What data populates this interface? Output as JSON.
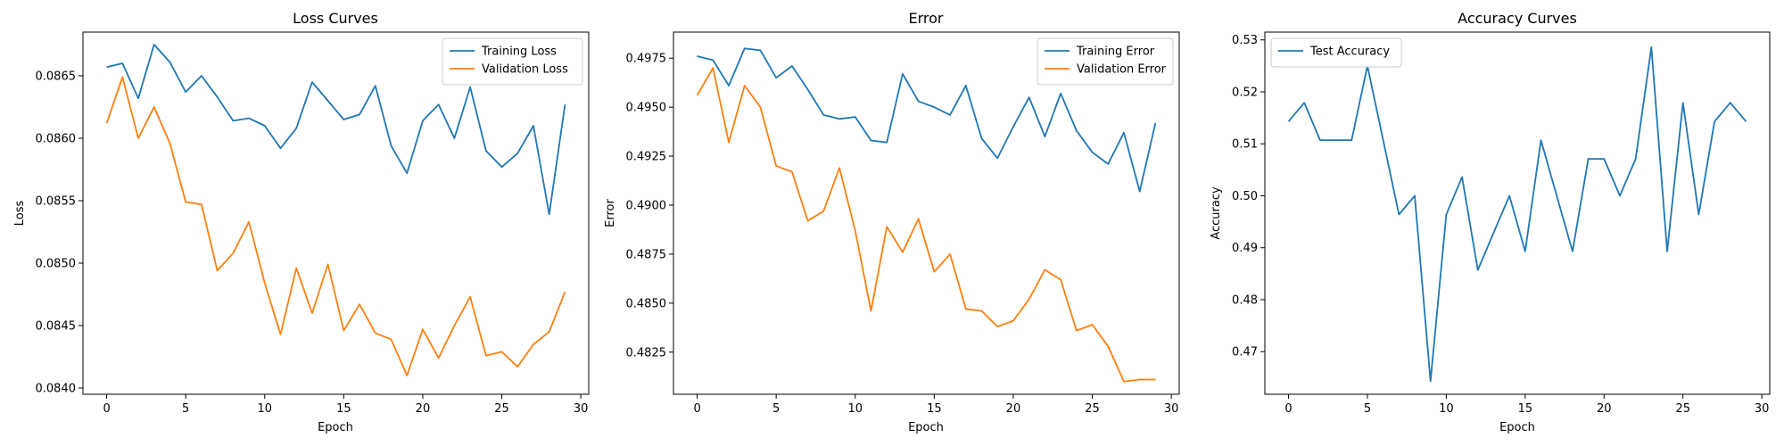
{
  "colors": {
    "series1": "#1f77b4",
    "series2": "#ff7f0e"
  },
  "chart_data": [
    {
      "type": "line",
      "title": "Loss Curves",
      "xlabel": "Epoch",
      "ylabel": "Loss",
      "xlim": [
        -1.5,
        30.5
      ],
      "ylim": [
        0.08395,
        0.08685
      ],
      "xticks": [
        0,
        5,
        10,
        15,
        20,
        25,
        30
      ],
      "yticks": [
        0.084,
        0.0845,
        0.085,
        0.0855,
        0.086,
        0.0865
      ],
      "ytick_decimals": 4,
      "grid": false,
      "legend": "upper right",
      "x": [
        0,
        1,
        2,
        3,
        4,
        5,
        6,
        7,
        8,
        9,
        10,
        11,
        12,
        13,
        14,
        15,
        16,
        17,
        18,
        19,
        20,
        21,
        22,
        23,
        24,
        25,
        26,
        27,
        28,
        29
      ],
      "series": [
        {
          "name": "Training Loss",
          "color": "#1f77b4",
          "values": [
            0.08657,
            0.0866,
            0.08632,
            0.08675,
            0.08661,
            0.08637,
            0.0865,
            0.08633,
            0.08614,
            0.08616,
            0.0861,
            0.08592,
            0.08608,
            0.08645,
            0.0863,
            0.08615,
            0.08619,
            0.08642,
            0.08594,
            0.08572,
            0.08614,
            0.08627,
            0.086,
            0.08641,
            0.0859,
            0.08577,
            0.08588,
            0.0861,
            0.08539,
            0.08627
          ]
        },
        {
          "name": "Validation Loss",
          "color": "#ff7f0e",
          "values": [
            0.08612,
            0.08649,
            0.086,
            0.08625,
            0.08596,
            0.08549,
            0.08547,
            0.08494,
            0.08508,
            0.08533,
            0.08484,
            0.08443,
            0.08496,
            0.0846,
            0.08499,
            0.08446,
            0.08467,
            0.08444,
            0.08439,
            0.0841,
            0.08447,
            0.08424,
            0.0845,
            0.08473,
            0.08426,
            0.08429,
            0.08417,
            0.08435,
            0.08445,
            0.08477
          ]
        }
      ]
    },
    {
      "type": "line",
      "title": "Error",
      "xlabel": "Epoch",
      "ylabel": "Error",
      "xlim": [
        -1.5,
        30.5
      ],
      "ylim": [
        0.48035,
        0.49883
      ],
      "xticks": [
        0,
        5,
        10,
        15,
        20,
        25,
        30
      ],
      "yticks": [
        0.4825,
        0.485,
        0.4875,
        0.49,
        0.4925,
        0.495,
        0.4975
      ],
      "ytick_decimals": 4,
      "grid": false,
      "legend": "upper right",
      "x": [
        0,
        1,
        2,
        3,
        4,
        5,
        6,
        7,
        8,
        9,
        10,
        11,
        12,
        13,
        14,
        15,
        16,
        17,
        18,
        19,
        20,
        21,
        22,
        23,
        24,
        25,
        26,
        27,
        28,
        29
      ],
      "series": [
        {
          "name": "Training Error",
          "color": "#1f77b4",
          "values": [
            0.4976,
            0.4974,
            0.4961,
            0.498,
            0.4979,
            0.4965,
            0.4971,
            0.4959,
            0.4946,
            0.4944,
            0.4945,
            0.4933,
            0.4932,
            0.4967,
            0.4953,
            0.495,
            0.4946,
            0.4961,
            0.4934,
            0.4924,
            0.494,
            0.4955,
            0.4935,
            0.4957,
            0.4938,
            0.4927,
            0.4921,
            0.4937,
            0.4907,
            0.4942
          ]
        },
        {
          "name": "Validation Error",
          "color": "#ff7f0e",
          "values": [
            0.4956,
            0.497,
            0.4932,
            0.4961,
            0.495,
            0.492,
            0.4917,
            0.4892,
            0.4897,
            0.4919,
            0.4887,
            0.4846,
            0.4889,
            0.4876,
            0.4893,
            0.4866,
            0.4875,
            0.4847,
            0.4846,
            0.4838,
            0.4841,
            0.4852,
            0.4867,
            0.4862,
            0.4836,
            0.4839,
            0.4828,
            0.481,
            0.4811,
            0.4811
          ]
        }
      ]
    },
    {
      "type": "line",
      "title": "Accuracy Curves",
      "xlabel": "Epoch",
      "ylabel": "Accuracy",
      "xlim": [
        -1.5,
        30.5
      ],
      "ylim": [
        0.4618,
        0.5315
      ],
      "xticks": [
        0,
        5,
        10,
        15,
        20,
        25,
        30
      ],
      "yticks": [
        0.47,
        0.48,
        0.49,
        0.5,
        0.51,
        0.52,
        0.53
      ],
      "ytick_decimals": 2,
      "grid": false,
      "legend": "upper left",
      "x": [
        0,
        1,
        2,
        3,
        4,
        5,
        6,
        7,
        8,
        9,
        10,
        11,
        12,
        13,
        14,
        15,
        16,
        17,
        18,
        19,
        20,
        21,
        22,
        23,
        24,
        25,
        26,
        27,
        28,
        29
      ],
      "series": [
        {
          "name": "Test Accuracy",
          "color": "#1f77b4",
          "values": [
            0.5143,
            0.5179,
            0.5107,
            0.5107,
            0.5107,
            0.525,
            0.5107,
            0.4964,
            0.5,
            0.4643,
            0.4964,
            0.5036,
            0.4857,
            0.4929,
            0.5,
            0.4893,
            0.5107,
            0.5,
            0.4893,
            0.5071,
            0.5071,
            0.5,
            0.5071,
            0.5286,
            0.4893,
            0.5179,
            0.4964,
            0.5143,
            0.5179,
            0.5143
          ]
        }
      ]
    }
  ]
}
